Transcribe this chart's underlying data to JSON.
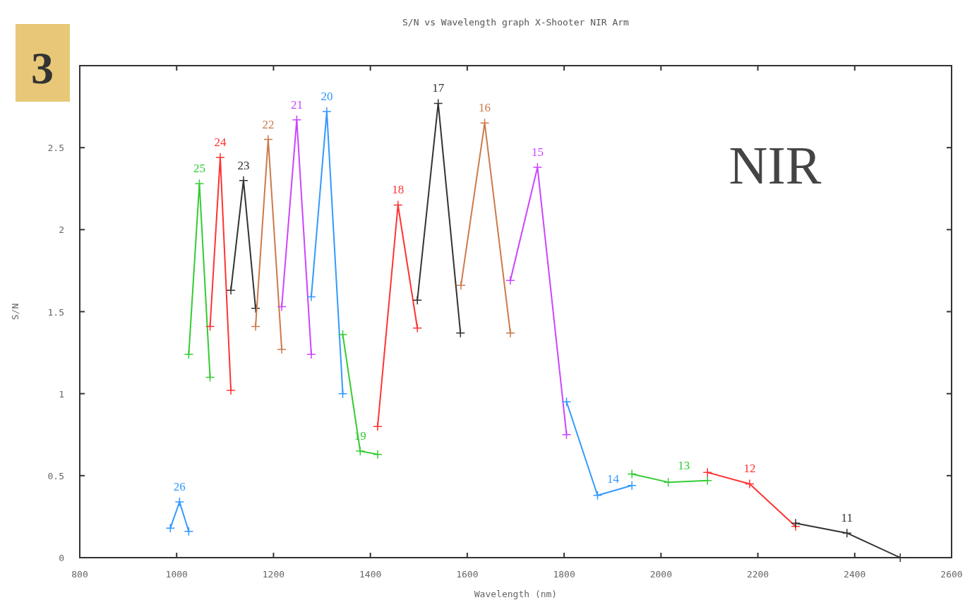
{
  "chart_data": {
    "type": "line",
    "title": "S/N vs Wavelength graph X-Shooter NIR Arm",
    "xlabel": "Wavelength (nm)",
    "ylabel": "S/N",
    "xlim": [
      800,
      2600
    ],
    "xticks": [
      800,
      1000,
      1200,
      1400,
      1600,
      1800,
      2000,
      2200,
      2400,
      2600
    ],
    "ylim": [
      0,
      3
    ],
    "yticks": [
      0,
      0.5,
      1,
      1.5,
      2,
      2.5
    ],
    "marker": "cross",
    "grid": false,
    "annotations": [
      "3",
      "NIR"
    ],
    "series": [
      {
        "name": "26",
        "color": "#3399ff",
        "x": [
          987,
          1006,
          1025
        ],
        "values": [
          0.18,
          0.34,
          0.16
        ]
      },
      {
        "name": "25",
        "color": "#33cc33",
        "x": [
          1025,
          1047,
          1069
        ],
        "values": [
          1.24,
          2.28,
          1.1
        ]
      },
      {
        "name": "24",
        "color": "#ff3333",
        "x": [
          1069,
          1090,
          1112
        ],
        "values": [
          1.41,
          2.44,
          1.02
        ]
      },
      {
        "name": "23",
        "color": "#333333",
        "x": [
          1112,
          1138,
          1163
        ],
        "values": [
          1.63,
          2.3,
          1.52
        ]
      },
      {
        "name": "22",
        "color": "#cc7a4a",
        "x": [
          1163,
          1189,
          1217
        ],
        "values": [
          1.41,
          2.55,
          1.27
        ]
      },
      {
        "name": "21",
        "color": "#cc44ff",
        "x": [
          1217,
          1248,
          1278
        ],
        "values": [
          1.53,
          2.67,
          1.24
        ]
      },
      {
        "name": "20",
        "color": "#3399ff",
        "x": [
          1278,
          1310,
          1343
        ],
        "values": [
          1.59,
          2.72,
          1.0
        ]
      },
      {
        "name": "19",
        "color": "#33cc33",
        "x": [
          1343,
          1379,
          1415
        ],
        "values": [
          1.36,
          0.65,
          0.63
        ]
      },
      {
        "name": "18",
        "color": "#ff3333",
        "x": [
          1415,
          1457,
          1497
        ],
        "values": [
          0.8,
          2.15,
          1.4
        ]
      },
      {
        "name": "17",
        "color": "#333333",
        "x": [
          1497,
          1540,
          1586
        ],
        "values": [
          1.57,
          2.77,
          1.37
        ]
      },
      {
        "name": "16",
        "color": "#cc7a4a",
        "x": [
          1587,
          1636,
          1689
        ],
        "values": [
          1.66,
          2.65,
          1.37
        ]
      },
      {
        "name": "15",
        "color": "#cc44ff",
        "x": [
          1689,
          1745,
          1805
        ],
        "values": [
          1.69,
          2.38,
          0.75
        ]
      },
      {
        "name": "14",
        "color": "#3399ff",
        "x": [
          1805,
          1869,
          1940
        ],
        "values": [
          0.95,
          0.38,
          0.44
        ]
      },
      {
        "name": "13",
        "color": "#33cc33",
        "x": [
          1940,
          2015,
          2096
        ],
        "values": [
          0.51,
          0.46,
          0.47
        ]
      },
      {
        "name": "12",
        "color": "#ff3333",
        "x": [
          2096,
          2183,
          2278
        ],
        "values": [
          0.52,
          0.45,
          0.19
        ]
      },
      {
        "name": "11",
        "color": "#333333",
        "x": [
          2278,
          2384,
          2494
        ],
        "values": [
          0.21,
          0.15,
          0.0
        ]
      }
    ]
  }
}
